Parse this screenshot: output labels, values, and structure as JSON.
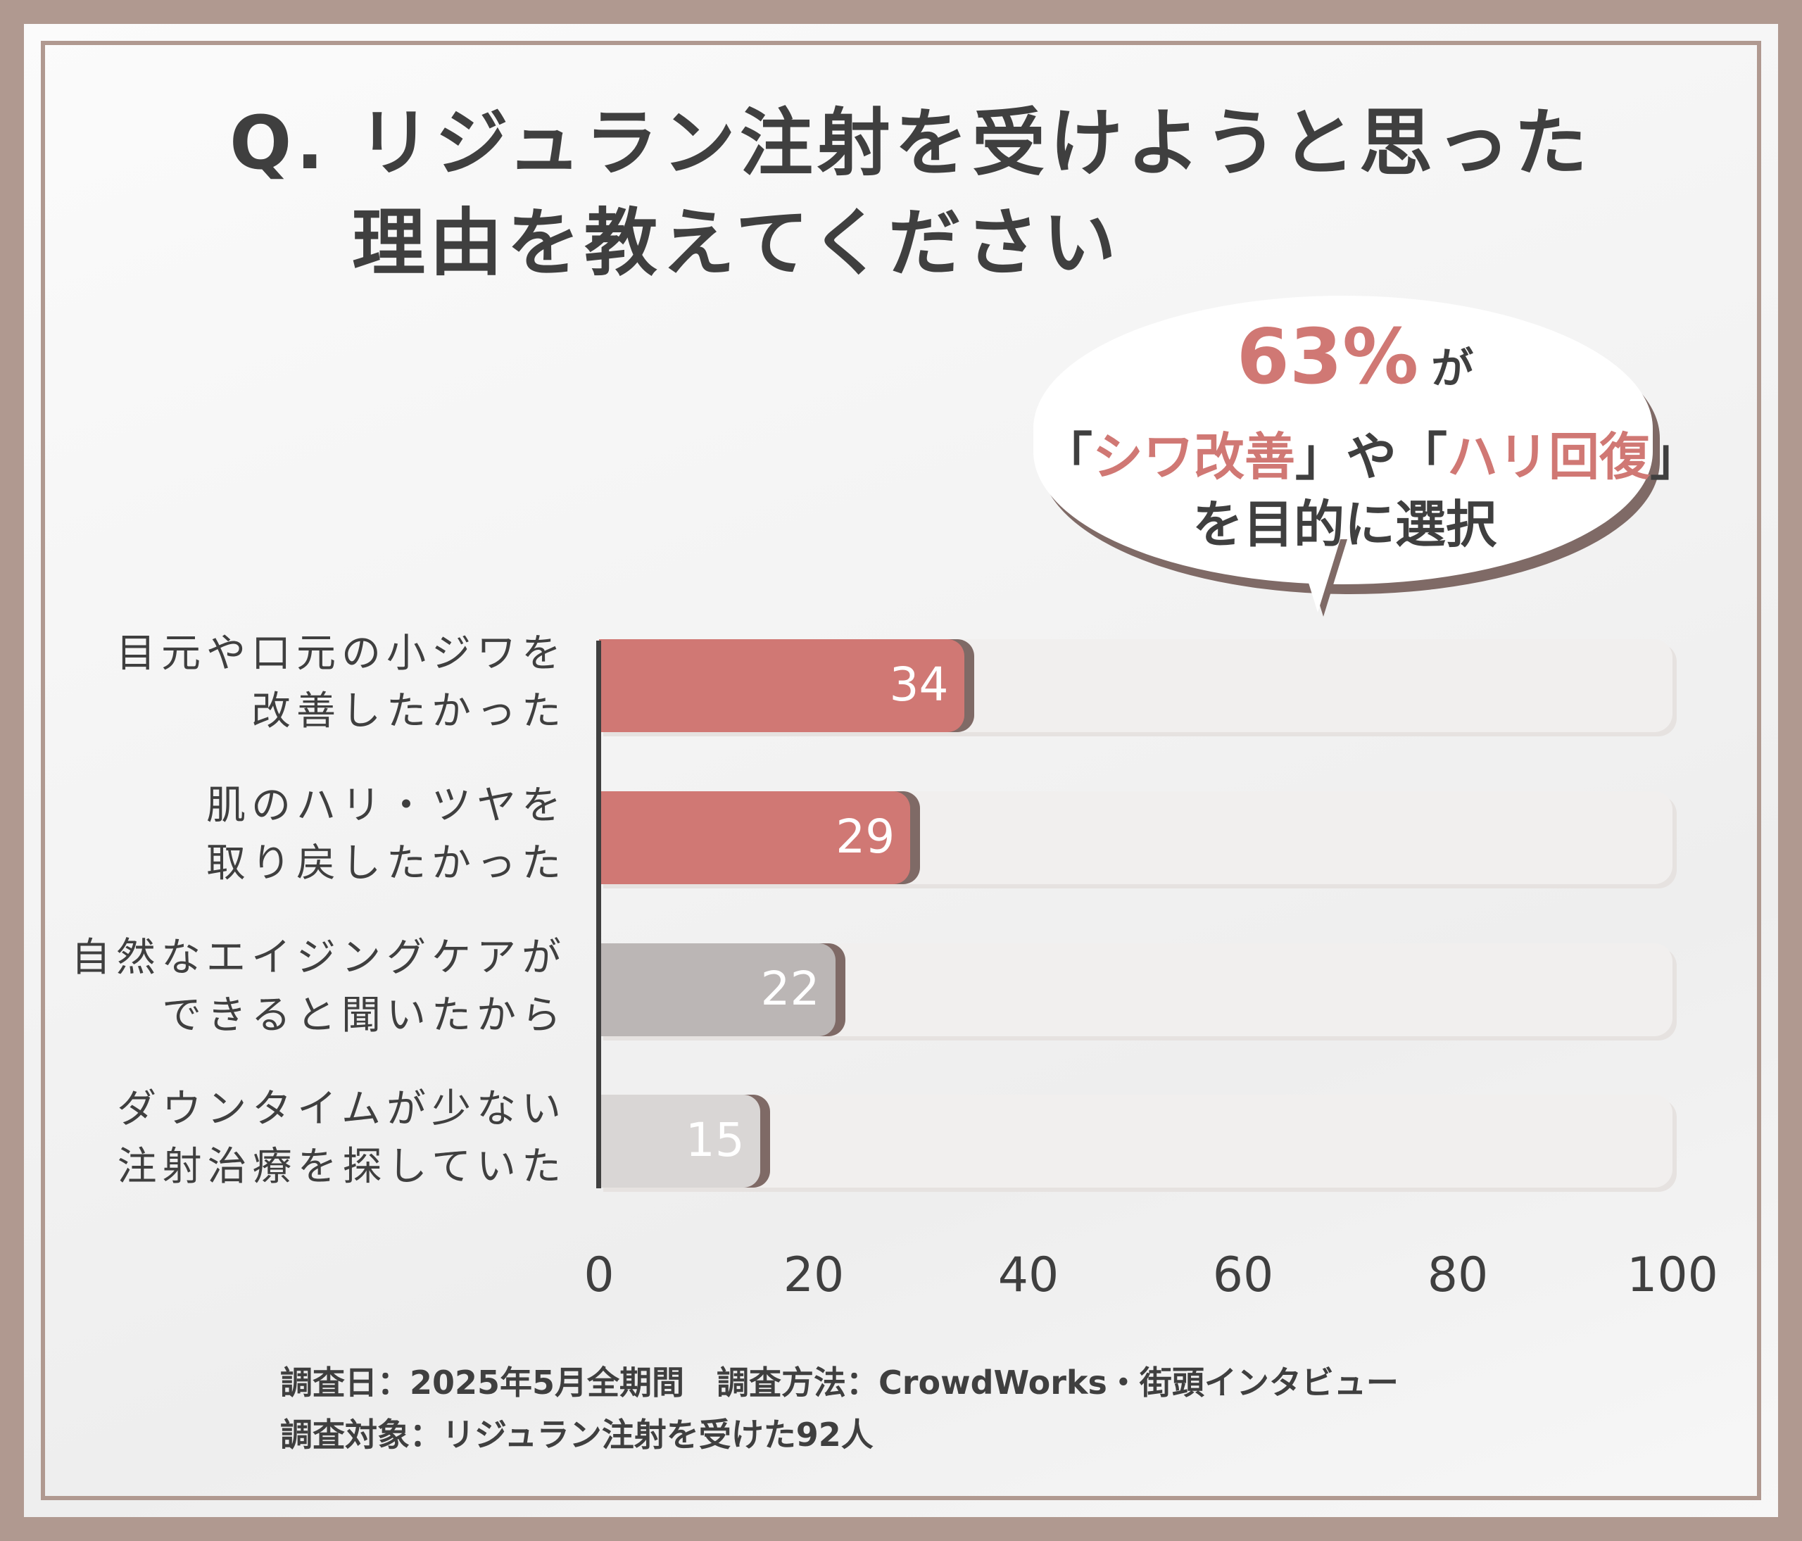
{
  "title": {
    "line1": "Q. リジュラン注射を受けようと思った",
    "line2": "理由を教えてください"
  },
  "callout": {
    "percent": "63%",
    "ga": "が",
    "line2_a": "「",
    "line2_b": "シワ改善",
    "line2_c": "」や「",
    "line2_d": "ハリ回復",
    "line2_e": "」",
    "line3": "を目的に選択"
  },
  "chart_data": {
    "type": "bar",
    "orientation": "horizontal",
    "categories": [
      [
        "目元や口元の小ジワを",
        "改善したかった"
      ],
      [
        "肌のハリ・ツヤを",
        "取り戻したかった"
      ],
      [
        "自然なエイジングケアが",
        "できると聞いたから"
      ],
      [
        "ダウンタイムが少ない",
        "注射治療を探していた"
      ]
    ],
    "values": [
      34,
      29,
      22,
      15
    ],
    "value_labels": [
      "34",
      "29",
      "22",
      "15"
    ],
    "bar_colors": [
      "#d07874",
      "#d07874",
      "#bbb6b5",
      "#d9d6d5"
    ],
    "track_max": 100,
    "xlim": [
      0,
      100
    ],
    "x_ticks": [
      "0",
      "20",
      "40",
      "60",
      "80",
      "100"
    ],
    "xlabel": "",
    "ylabel": ""
  },
  "footer": {
    "line1": "調査日：2025年5月全期間　調査方法：CrowdWorks・街頭インタビュー",
    "line2": "調査対象：リジュラン注射を受けた92人"
  }
}
